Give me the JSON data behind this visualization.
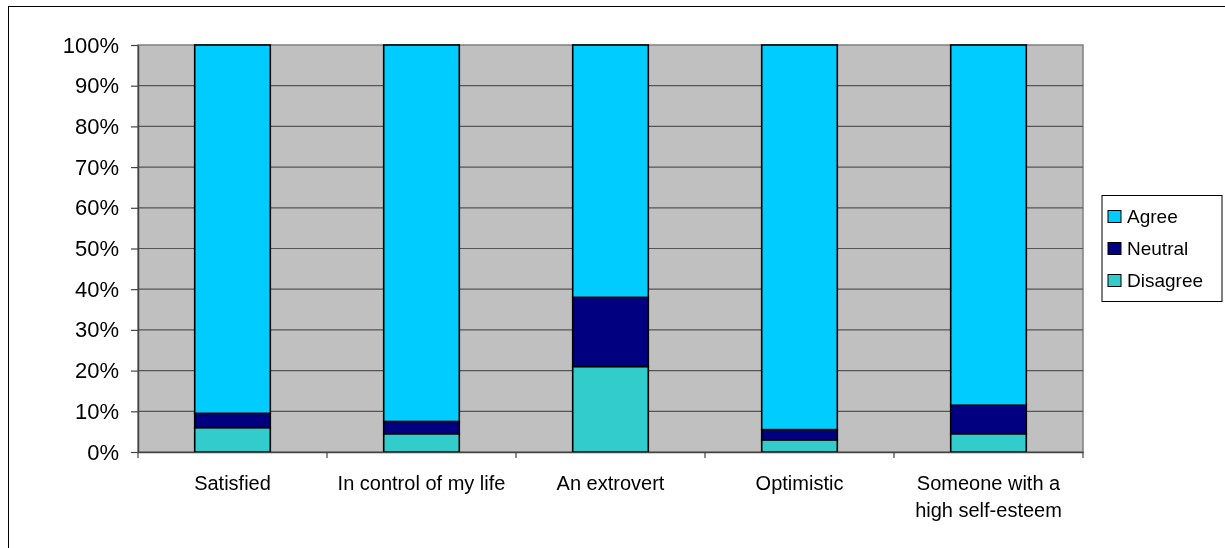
{
  "chart_data": {
    "type": "bar",
    "stacked": true,
    "categories": [
      "Satisfied",
      "In control of my life",
      "An extrovert",
      "Optimistic",
      "Someone with a high self-esteem"
    ],
    "series": [
      {
        "name": "Disagree",
        "color": "#33cccc",
        "values": [
          6,
          4.5,
          21,
          3,
          4.5
        ]
      },
      {
        "name": "Neutral",
        "color": "#000080",
        "values": [
          3.5,
          3,
          17,
          2.5,
          7
        ]
      },
      {
        "name": "Agree",
        "color": "#00ccff",
        "values": [
          90.5,
          92.5,
          62,
          94.5,
          88.5
        ]
      }
    ],
    "ylim": [
      0,
      100
    ],
    "yticks": [
      {
        "value": 0,
        "label": "0%"
      },
      {
        "value": 10,
        "label": "10%"
      },
      {
        "value": 20,
        "label": "20%"
      },
      {
        "value": 30,
        "label": "30%"
      },
      {
        "value": 40,
        "label": "40%"
      },
      {
        "value": 50,
        "label": "50%"
      },
      {
        "value": 60,
        "label": "60%"
      },
      {
        "value": 70,
        "label": "70%"
      },
      {
        "value": 80,
        "label": "80%"
      },
      {
        "value": 90,
        "label": "90%"
      },
      {
        "value": 100,
        "label": "100%"
      }
    ],
    "grid": "y",
    "legend": "right"
  }
}
